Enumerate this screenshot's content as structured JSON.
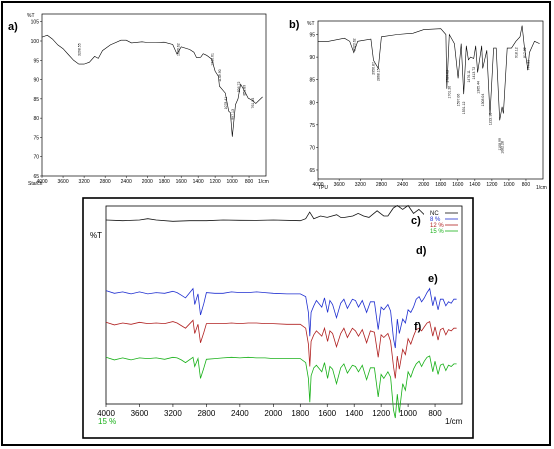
{
  "chart_data": [
    {
      "type": "line",
      "panel_label": "a)",
      "ylabel": "%T",
      "xlabel": "1/cm",
      "sample_label": "Starch",
      "x_ticks": [
        4000,
        3600,
        3200,
        2800,
        2400,
        2000,
        1800,
        1600,
        1400,
        1200,
        1000,
        800
      ],
      "y_ticks": [
        105,
        100,
        95,
        90,
        85,
        80,
        75,
        70,
        65
      ],
      "xlim": [
        4000,
        600
      ],
      "ylim": [
        65,
        107
      ],
      "series": [
        {
          "color": "#000000",
          "x": [
            4000,
            3900,
            3800,
            3700,
            3600,
            3500,
            3400,
            3300,
            3200,
            3100,
            3000,
            2930,
            2850,
            2700,
            2500,
            2400,
            2300,
            2100,
            2000,
            1900,
            1800,
            1700,
            1650,
            1600,
            1500,
            1450,
            1420,
            1370,
            1340,
            1300,
            1240,
            1200,
            1160,
            1150,
            1080,
            1040,
            1020,
            997,
            960,
            930,
            900,
            860,
            810,
            760,
            720,
            640
          ],
          "y": [
            101,
            101.5,
            100.5,
            99,
            98,
            96.5,
            95,
            94,
            94,
            94.5,
            96,
            95.5,
            97.5,
            99,
            100.2,
            100.2,
            99.5,
            99.8,
            99.6,
            99.6,
            99.7,
            99.1,
            96.6,
            98.5,
            97.8,
            97.1,
            95.7,
            95.8,
            96.7,
            96.3,
            95.3,
            92.2,
            90.8,
            88.3,
            86.5,
            81.8,
            81.4,
            75.2,
            83.5,
            85,
            88.8,
            87.3,
            85.2,
            84.6,
            83.8,
            85.5
          ]
        }
      ],
      "peak_labels": [
        "3298.55",
        "1639.62",
        "1236.61",
        "1149.90",
        "1078.41",
        "997.13",
        "926.72",
        "858.89",
        "761.84"
      ]
    },
    {
      "type": "line",
      "panel_label": "b)",
      "ylabel": "%T",
      "xlabel": "1/cm",
      "sample_label": "TPU",
      "x_ticks": [
        4000,
        3600,
        3200,
        2800,
        2400,
        2000,
        1800,
        1600,
        1400,
        1200,
        1000,
        800
      ],
      "y_ticks": [
        95,
        90,
        85,
        80,
        75,
        70,
        65
      ],
      "xlim": [
        4000,
        600
      ],
      "ylim": [
        63,
        98
      ],
      "series": [
        {
          "color": "#000000",
          "x": [
            4000,
            3800,
            3500,
            3400,
            3323,
            3250,
            3000,
            2950,
            2860,
            2800,
            2500,
            2200,
            2000,
            1800,
            1740,
            1729,
            1700,
            1640,
            1597,
            1560,
            1531,
            1500,
            1476,
            1450,
            1413,
            1390,
            1368,
            1320,
            1308,
            1260,
            1222,
            1180,
            1150,
            1108,
            1080,
            1065,
            1020,
            970,
            918,
            870,
            845,
            817,
            777,
            760,
            700,
            640
          ],
          "y": [
            93.5,
            93.5,
            94.2,
            93.5,
            91,
            93.5,
            94,
            89.3,
            87.5,
            94.5,
            95,
            95.3,
            96.1,
            96.3,
            95,
            83,
            95,
            93,
            85.3,
            93,
            81.8,
            92.5,
            89.4,
            90,
            89.7,
            92.5,
            86.6,
            92.5,
            87.5,
            91.5,
            77.2,
            92,
            92,
            76,
            79,
            77.5,
            92,
            92,
            93.5,
            94.5,
            97,
            92,
            87.2,
            91,
            93.5,
            93
          ]
        }
      ],
      "peak_labels": [
        "3323.62",
        "2956.87",
        "2868.15",
        "1729.02",
        "1701.20",
        "1597.06",
        "1531.12",
        "1476.11",
        "1413.72",
        "1365.44",
        "1308.04",
        "1222.95",
        "1108.99",
        "1082.28",
        "918.12",
        "817.82",
        "777.31"
      ]
    },
    {
      "type": "line",
      "ylabel": "%T",
      "xlabel": "1/cm",
      "x_axis_note": "15 %",
      "x_ticks": [
        4000,
        3600,
        3200,
        2800,
        2400,
        2000,
        1800,
        1600,
        1400,
        1200,
        1000,
        800
      ],
      "xlim": [
        4000,
        600
      ],
      "legend": [
        "NC",
        "8 %",
        "12 %",
        "15 %"
      ],
      "legend_placement": "top-right",
      "curve_labels": [
        "c)",
        "d)",
        "e)",
        "f)"
      ],
      "series": [
        {
          "name": "NC",
          "color": "#111111",
          "x": [
            4000,
            3800,
            3600,
            3500,
            3400,
            3200,
            3000,
            2800,
            2600,
            2400,
            2200,
            2000,
            1800,
            1760,
            1730,
            1700,
            1650,
            1600,
            1530,
            1500,
            1470,
            1410,
            1370,
            1330,
            1290,
            1230,
            1180,
            1150,
            1110,
            1080,
            1040,
            1000,
            960,
            920,
            880,
            840,
            800,
            760,
            720,
            680,
            640
          ],
          "y": [
            0,
            0.5,
            0,
            -1,
            0,
            1,
            0.5,
            0.5,
            0,
            0.2,
            0.3,
            0,
            0.5,
            -1,
            -6,
            -1,
            -3,
            -2,
            -4,
            -2,
            -2,
            -3,
            -5,
            -3,
            -2,
            -7,
            -3,
            -3,
            -9,
            -11,
            -8,
            -11,
            -5,
            -8,
            -4,
            0,
            -6,
            -4,
            -3,
            -2,
            -2
          ]
        },
        {
          "name": "8 %",
          "color": "#1f2fd0",
          "x": [
            4000,
            3900,
            3800,
            3700,
            3600,
            3500,
            3400,
            3300,
            3200,
            3150,
            3100,
            3050,
            2960,
            2940,
            2900,
            2870,
            2830,
            2800,
            2700,
            2600,
            2500,
            2400,
            2300,
            2200,
            2100,
            2000,
            1900,
            1800,
            1760,
            1740,
            1729,
            1720,
            1700,
            1680,
            1640,
            1620,
            1597,
            1580,
            1560,
            1531,
            1500,
            1476,
            1450,
            1413,
            1390,
            1368,
            1340,
            1308,
            1280,
            1250,
            1222,
            1200,
            1180,
            1150,
            1130,
            1108,
            1095,
            1080,
            1065,
            1040,
            1020,
            1000,
            980,
            960,
            940,
            918,
            900,
            880,
            860,
            840,
            817,
            800,
            777,
            760,
            740,
            720,
            700,
            680,
            660,
            640
          ],
          "y": [
            53.5,
            55.5,
            54.5,
            56,
            54.5,
            56,
            55,
            55.5,
            54,
            55,
            57,
            59,
            52,
            64,
            56,
            72,
            63,
            55,
            55.5,
            55.5,
            54.5,
            55,
            55,
            54.5,
            55,
            55.5,
            56,
            56,
            58,
            70,
            88,
            70,
            65,
            61,
            66,
            59,
            70,
            61,
            64,
            74,
            63,
            60,
            67,
            60,
            61,
            66,
            61,
            70,
            62,
            62,
            83,
            66,
            68,
            64,
            69,
            90,
            97,
            75,
            86,
            75,
            78,
            68,
            70,
            66,
            60,
            58,
            62,
            59,
            55,
            52,
            65,
            58,
            68,
            60,
            60,
            65,
            62,
            63,
            60,
            60
          ]
        },
        {
          "name": "12 %",
          "color": "#b02020",
          "x": [
            4000,
            3900,
            3800,
            3700,
            3600,
            3500,
            3400,
            3300,
            3200,
            3150,
            3100,
            3050,
            2960,
            2940,
            2900,
            2870,
            2830,
            2800,
            2700,
            2600,
            2500,
            2400,
            2300,
            2200,
            2100,
            2000,
            1900,
            1800,
            1760,
            1740,
            1729,
            1720,
            1700,
            1680,
            1640,
            1620,
            1597,
            1580,
            1560,
            1531,
            1500,
            1476,
            1450,
            1413,
            1390,
            1368,
            1340,
            1308,
            1280,
            1250,
            1222,
            1200,
            1180,
            1150,
            1130,
            1108,
            1095,
            1080,
            1065,
            1040,
            1020,
            1000,
            980,
            960,
            940,
            918,
            900,
            880,
            860,
            840,
            817,
            800,
            777,
            760,
            740,
            720,
            700,
            680,
            660,
            640
          ],
          "y": [
            77.5,
            79.5,
            78,
            79,
            77.5,
            78.5,
            78,
            78.5,
            77,
            78,
            80,
            82,
            76,
            86,
            79,
            93,
            85,
            78.5,
            78.5,
            78.5,
            78,
            78.5,
            78,
            78,
            78.5,
            78.5,
            79,
            79,
            82,
            94,
            111,
            92,
            87,
            84,
            88,
            82,
            92,
            84,
            86,
            96,
            86,
            82,
            89,
            82,
            84,
            88,
            83,
            93,
            84,
            85,
            104,
            87,
            89,
            86,
            92,
            111,
            120,
            103,
            113,
            98,
            102,
            90,
            94,
            88,
            83,
            82,
            84,
            81,
            78,
            77,
            88,
            81,
            91,
            83,
            82,
            87,
            83,
            84,
            82,
            82
          ]
        },
        {
          "name": "15 %",
          "color": "#18b018",
          "x": [
            4000,
            3900,
            3800,
            3700,
            3600,
            3500,
            3400,
            3300,
            3200,
            3150,
            3100,
            3050,
            2960,
            2940,
            2900,
            2870,
            2830,
            2800,
            2700,
            2600,
            2500,
            2400,
            2300,
            2200,
            2100,
            2000,
            1900,
            1800,
            1760,
            1740,
            1729,
            1720,
            1700,
            1680,
            1640,
            1620,
            1597,
            1580,
            1560,
            1531,
            1500,
            1476,
            1450,
            1413,
            1390,
            1368,
            1340,
            1308,
            1280,
            1250,
            1222,
            1200,
            1180,
            1150,
            1130,
            1108,
            1095,
            1080,
            1065,
            1040,
            1020,
            1000,
            980,
            960,
            940,
            918,
            900,
            880,
            860,
            840,
            817,
            800,
            777,
            760,
            740,
            720,
            700,
            680,
            660,
            640
          ],
          "y": [
            104,
            106,
            104.5,
            106,
            104.5,
            105,
            104.5,
            105.5,
            104,
            104.5,
            106,
            108,
            104,
            111,
            105,
            120,
            112,
            105.5,
            105,
            104.5,
            104,
            104.5,
            104,
            104.5,
            104.5,
            105,
            105,
            105,
            108,
            120,
            138,
            118,
            112,
            110,
            115,
            108,
            120,
            111,
            113,
            124,
            112,
            109,
            116,
            110,
            111,
            115,
            110,
            121,
            112,
            112,
            134,
            117,
            120,
            115,
            119,
            144,
            150,
            132,
            146,
            124,
            129,
            115,
            119,
            113,
            109,
            107,
            111,
            107,
            104,
            103,
            115,
            107,
            117,
            110,
            109,
            114,
            110,
            111,
            109,
            109
          ]
        }
      ]
    }
  ]
}
